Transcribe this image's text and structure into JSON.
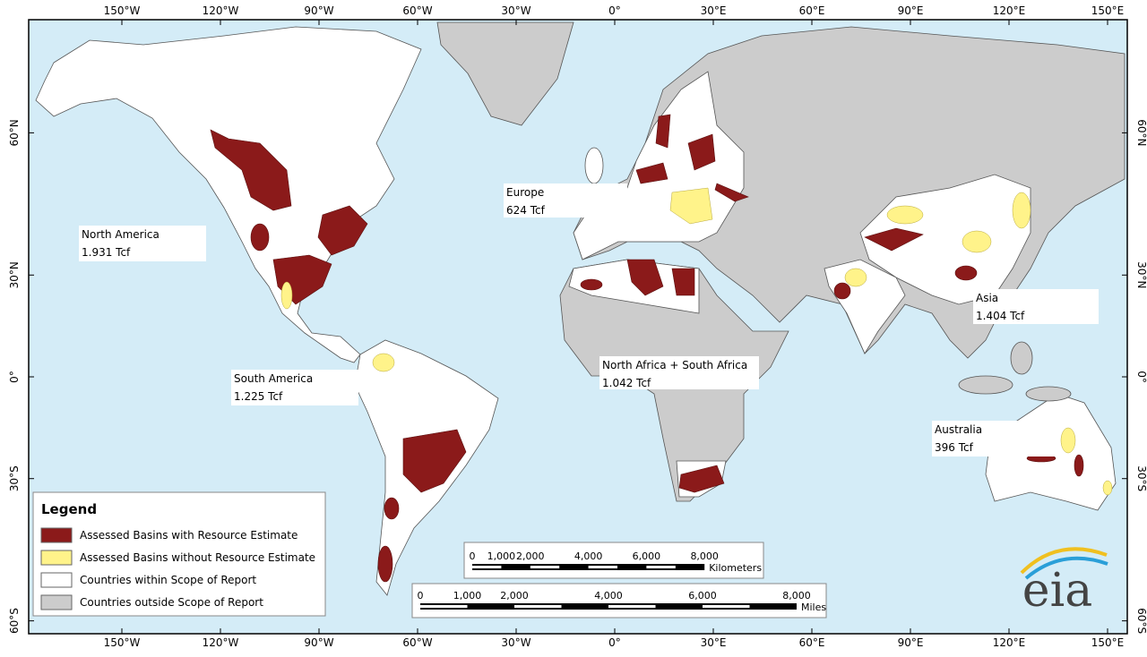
{
  "lon_ticks": [
    {
      "value": -150,
      "label": "150°W"
    },
    {
      "value": -120,
      "label": "120°W"
    },
    {
      "value": -90,
      "label": "90°W"
    },
    {
      "value": -60,
      "label": "60°W"
    },
    {
      "value": -30,
      "label": "30°W"
    },
    {
      "value": 0,
      "label": "0°"
    },
    {
      "value": 30,
      "label": "30°E"
    },
    {
      "value": 60,
      "label": "60°E"
    },
    {
      "value": 90,
      "label": "90°E"
    },
    {
      "value": 120,
      "label": "120°E"
    },
    {
      "value": 150,
      "label": "150°E"
    }
  ],
  "lat_ticks": [
    {
      "value": 60,
      "label": "60°N"
    },
    {
      "value": 30,
      "label": "30°N"
    },
    {
      "value": 0,
      "label": "0°"
    },
    {
      "value": -30,
      "label": "30°S"
    },
    {
      "value": -60,
      "label": "60°S"
    }
  ],
  "regions": [
    {
      "name": "North America",
      "estimate": "1.931 Tcf"
    },
    {
      "name": "Europe",
      "estimate": "624 Tcf"
    },
    {
      "name": "Asia",
      "estimate": "1.404 Tcf"
    },
    {
      "name": "North Africa + South Africa",
      "estimate": "1.042 Tcf"
    },
    {
      "name": "South America",
      "estimate": "1.225 Tcf"
    },
    {
      "name": "Australia",
      "estimate": "396 Tcf"
    }
  ],
  "legend": {
    "title": "Legend",
    "items": [
      {
        "label": "Assessed Basins with Resource Estimate",
        "color": "#8b1a1a"
      },
      {
        "label": "Assessed Basins without Resource Estimate",
        "color": "#fff38a"
      },
      {
        "label": "Countries within Scope of Report",
        "color": "#ffffff"
      },
      {
        "label": "Countries outside Scope of Report",
        "color": "#cccccc"
      }
    ]
  },
  "scale_km": {
    "unit": "Kilometers",
    "ticks": [
      0,
      {
        "value": 1000,
        "label": "1,000"
      },
      {
        "value": 2000,
        "label": "2,000"
      },
      {
        "value": 4000,
        "label": "4,000"
      },
      {
        "value": 6000,
        "label": "6,000"
      },
      {
        "value": 8000,
        "label": "8,000"
      }
    ]
  },
  "scale_mi": {
    "unit": "Miles",
    "ticks": [
      0,
      {
        "value": 1000,
        "label": "1,000"
      },
      {
        "value": 2000,
        "label": "2,000"
      },
      {
        "value": 4000,
        "label": "4,000"
      },
      {
        "value": 6000,
        "label": "6,000"
      },
      {
        "value": 8000,
        "label": "8,000"
      }
    ]
  },
  "logo": "eia"
}
